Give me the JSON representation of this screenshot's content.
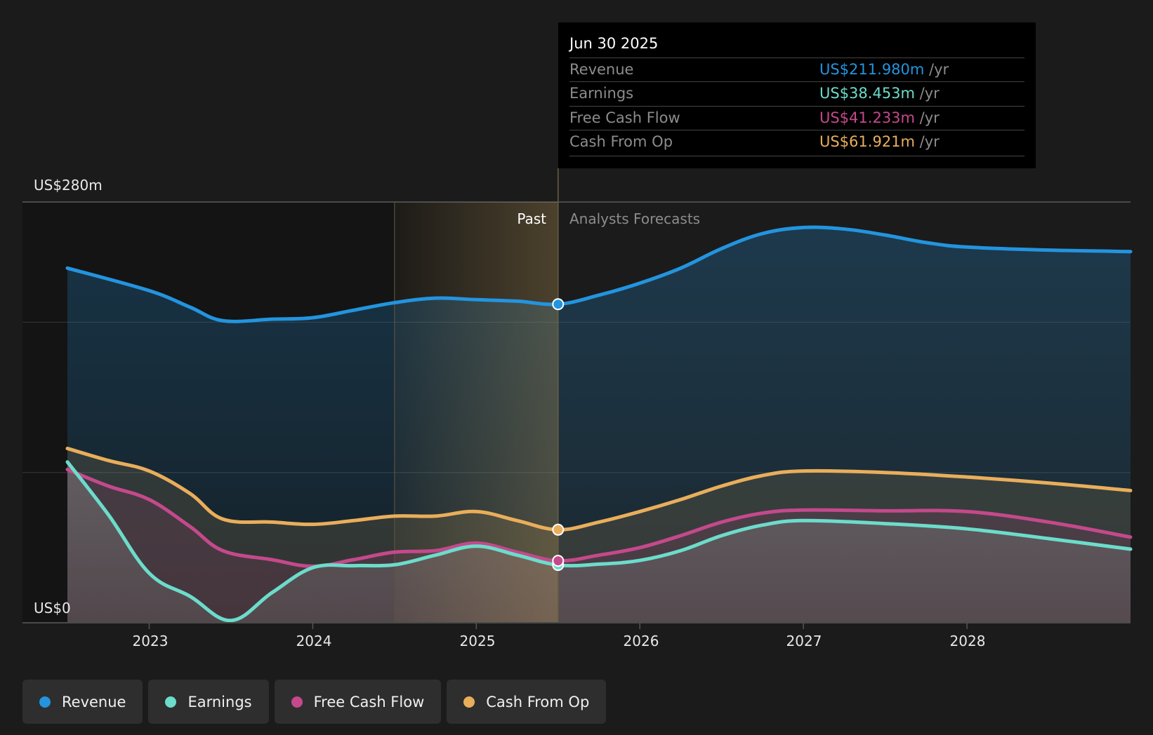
{
  "tooltip": {
    "date": "Jun 30 2025",
    "rows": [
      {
        "label": "Revenue",
        "value": "US$211.980m",
        "unit": " /yr",
        "color": "#2394df"
      },
      {
        "label": "Earnings",
        "value": "US$38.453m",
        "unit": " /yr",
        "color": "#6cdccb"
      },
      {
        "label": "Free Cash Flow",
        "value": "US$41.233m",
        "unit": " /yr",
        "color": "#c4498c"
      },
      {
        "label": "Cash From Op",
        "value": "US$61.921m",
        "unit": " /yr",
        "color": "#e9ae5b"
      }
    ]
  },
  "labels": {
    "past": "Past",
    "forecast": "Analysts Forecasts"
  },
  "legend": [
    {
      "label": "Revenue",
      "color": "#2394df"
    },
    {
      "label": "Earnings",
      "color": "#6cdccb"
    },
    {
      "label": "Free Cash Flow",
      "color": "#c4498c"
    },
    {
      "label": "Cash From Op",
      "color": "#e9ae5b"
    }
  ],
  "chart_data": {
    "type": "area",
    "title": "",
    "xlabel": "",
    "ylabel": "",
    "y_unit": "US$m",
    "ylim": [
      0,
      280
    ],
    "xlim": [
      2022.5,
      2029.0
    ],
    "y_tick_labels": [
      {
        "value": 280,
        "label": "US$280m"
      },
      {
        "value": 0,
        "label": "US$0"
      }
    ],
    "y_gridlines": [
      100,
      200,
      280
    ],
    "x_ticks": [
      {
        "value": 2023,
        "label": "2023"
      },
      {
        "value": 2024,
        "label": "2024"
      },
      {
        "value": 2025,
        "label": "2025"
      },
      {
        "value": 2026,
        "label": "2026"
      },
      {
        "value": 2027,
        "label": "2027"
      },
      {
        "value": 2028,
        "label": "2028"
      }
    ],
    "past_forecast_split": 2025.5,
    "highlight_start": 2024.5,
    "grid": true,
    "legend_position": "bottom-left",
    "series": [
      {
        "name": "Revenue",
        "color": "#2394df",
        "points": [
          [
            2022.5,
            236
          ],
          [
            2023.0,
            221
          ],
          [
            2023.25,
            210
          ],
          [
            2023.45,
            201
          ],
          [
            2023.75,
            202
          ],
          [
            2024.0,
            203
          ],
          [
            2024.25,
            208
          ],
          [
            2024.5,
            213
          ],
          [
            2024.75,
            216
          ],
          [
            2025.0,
            215
          ],
          [
            2025.25,
            214
          ],
          [
            2025.5,
            211.98
          ],
          [
            2025.75,
            218
          ],
          [
            2026.0,
            226
          ],
          [
            2026.25,
            236
          ],
          [
            2026.5,
            249
          ],
          [
            2026.75,
            259
          ],
          [
            2027.0,
            263
          ],
          [
            2027.25,
            262
          ],
          [
            2027.5,
            258
          ],
          [
            2027.75,
            253
          ],
          [
            2028.0,
            250
          ],
          [
            2028.5,
            248
          ],
          [
            2029.0,
            247
          ]
        ]
      },
      {
        "name": "Cash From Op",
        "color": "#e9ae5b",
        "points": [
          [
            2022.5,
            116
          ],
          [
            2022.75,
            108
          ],
          [
            2023.0,
            101
          ],
          [
            2023.25,
            86
          ],
          [
            2023.45,
            69
          ],
          [
            2023.75,
            67
          ],
          [
            2024.0,
            65.5
          ],
          [
            2024.25,
            68
          ],
          [
            2024.5,
            71
          ],
          [
            2024.75,
            71
          ],
          [
            2025.0,
            74
          ],
          [
            2025.25,
            68
          ],
          [
            2025.5,
            61.92
          ],
          [
            2025.75,
            67
          ],
          [
            2026.0,
            74
          ],
          [
            2026.25,
            82
          ],
          [
            2026.5,
            91
          ],
          [
            2026.75,
            98
          ],
          [
            2027.0,
            101
          ],
          [
            2027.5,
            100
          ],
          [
            2028.0,
            97
          ],
          [
            2028.5,
            93
          ],
          [
            2029.0,
            88
          ]
        ]
      },
      {
        "name": "Free Cash Flow",
        "color": "#c4498c",
        "points": [
          [
            2022.5,
            102
          ],
          [
            2022.75,
            91
          ],
          [
            2023.0,
            82
          ],
          [
            2023.25,
            64
          ],
          [
            2023.45,
            48
          ],
          [
            2023.75,
            42
          ],
          [
            2024.0,
            37.6
          ],
          [
            2024.25,
            42
          ],
          [
            2024.5,
            47
          ],
          [
            2024.75,
            48
          ],
          [
            2025.0,
            53
          ],
          [
            2025.25,
            47
          ],
          [
            2025.5,
            41.23
          ],
          [
            2025.75,
            45
          ],
          [
            2026.0,
            50
          ],
          [
            2026.25,
            58
          ],
          [
            2026.5,
            67
          ],
          [
            2026.75,
            73
          ],
          [
            2027.0,
            75
          ],
          [
            2027.5,
            74.5
          ],
          [
            2028.0,
            74
          ],
          [
            2028.5,
            67
          ],
          [
            2029.0,
            57
          ]
        ]
      },
      {
        "name": "Earnings",
        "color": "#6cdccb",
        "points": [
          [
            2022.5,
            107
          ],
          [
            2022.75,
            72
          ],
          [
            2023.0,
            33
          ],
          [
            2023.25,
            17.6
          ],
          [
            2023.5,
            1.5
          ],
          [
            2023.75,
            20
          ],
          [
            2024.0,
            36.7
          ],
          [
            2024.25,
            38
          ],
          [
            2024.5,
            38.6
          ],
          [
            2024.75,
            45
          ],
          [
            2025.0,
            51
          ],
          [
            2025.25,
            45
          ],
          [
            2025.5,
            38.45
          ],
          [
            2025.75,
            39
          ],
          [
            2026.0,
            41.5
          ],
          [
            2026.25,
            48
          ],
          [
            2026.5,
            58
          ],
          [
            2026.75,
            65
          ],
          [
            2027.0,
            68
          ],
          [
            2027.5,
            66
          ],
          [
            2028.0,
            62.5
          ],
          [
            2028.5,
            56
          ],
          [
            2029.0,
            49
          ]
        ]
      }
    ],
    "highlight_markers": {
      "x": 2025.5,
      "values": {
        "Revenue": 211.98,
        "Earnings": 38.453,
        "Free Cash Flow": 41.233,
        "Cash From Op": 61.921
      }
    }
  }
}
